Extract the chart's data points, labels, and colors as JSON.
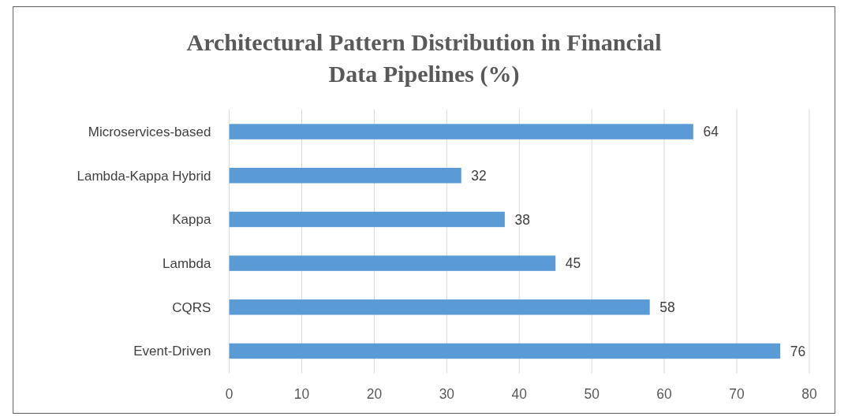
{
  "chart_data": {
    "type": "bar",
    "orientation": "horizontal",
    "title": "Architectural Pattern Distribution in Financial Data Pipelines (%)",
    "categories": [
      "Microservices-based",
      "Lambda-Kappa Hybrid",
      "Kappa",
      "Lambda",
      "CQRS",
      "Event-Driven"
    ],
    "values": [
      64,
      32,
      38,
      45,
      58,
      76
    ],
    "color": "#5b9bd5",
    "xlim": [
      0,
      80
    ],
    "xticks": [
      0,
      10,
      20,
      30,
      40,
      50,
      60,
      70,
      80
    ],
    "grid": "x",
    "data_labels": true
  }
}
